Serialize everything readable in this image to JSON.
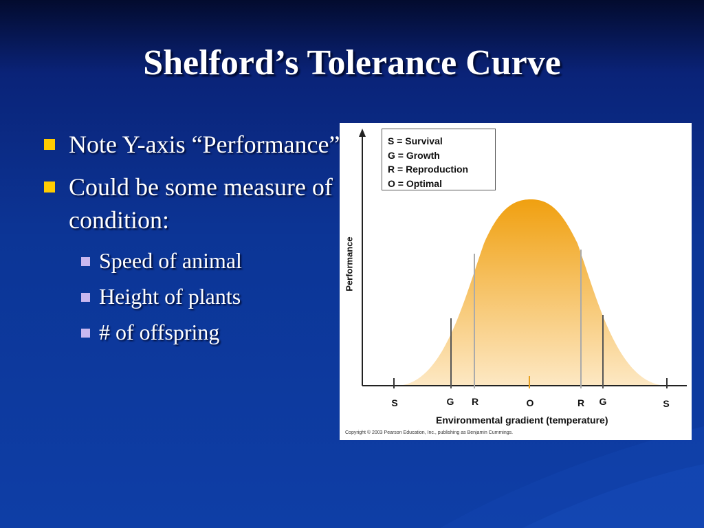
{
  "slide": {
    "title": "Shelford’s Tolerance Curve",
    "bullets": [
      "Note Y-axis “Performance”",
      "Could be some measure of condition:"
    ],
    "sub_bullets": [
      "Speed of animal",
      "Height of plants",
      "# of offspring"
    ],
    "bullet_color": "#ffcc00",
    "sub_bullet_color": "#c9b8f0"
  },
  "figure": {
    "legend": [
      "S = Survival",
      "G = Growth",
      "R = Reproduction",
      "O = Optimal"
    ],
    "ylabel": "Performance",
    "xlabel": "Environmental gradient (temperature)",
    "ticks": [
      "S",
      "G",
      "R",
      "O",
      "R",
      "G",
      "S"
    ],
    "copyright": "Copyright © 2003 Pearson Education, Inc., publishing as Benjamin Cummings.",
    "curve_color_top": "#f0a010",
    "curve_color_bottom": "#fde8c4"
  }
}
